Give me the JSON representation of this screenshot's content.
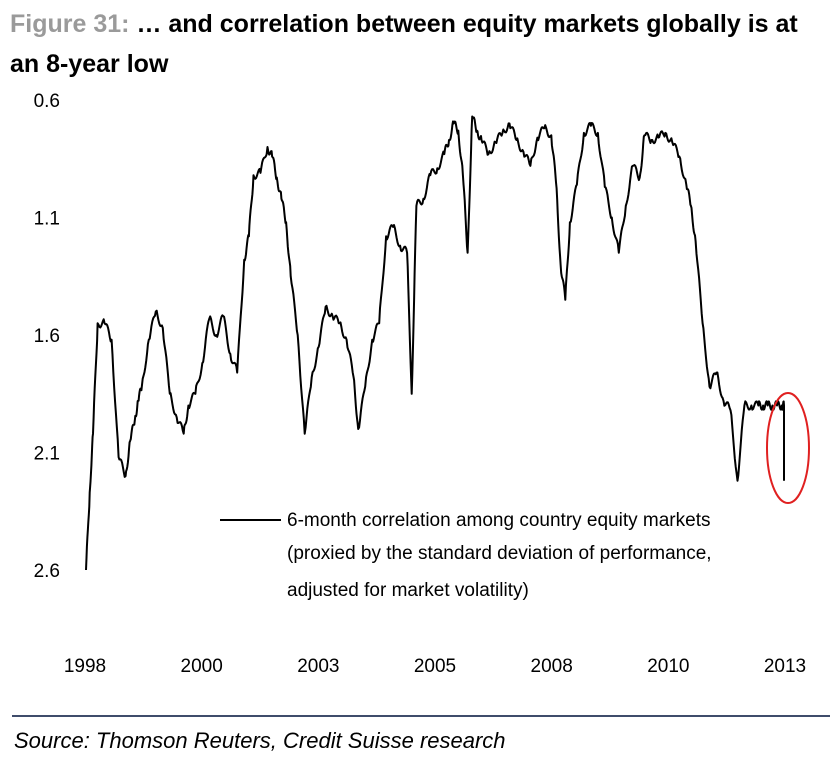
{
  "figure": {
    "label": "Figure 31:",
    "title": "… and correlation between equity markets globally is at an 8-year low",
    "source": "Source: Thomson Reuters, Credit Suisse research"
  },
  "chart_data": {
    "type": "line",
    "title": "Figure 31: … and correlation between equity markets globally is at an 8-year low",
    "y_axis": {
      "ticks": [
        "0.6",
        "1.1",
        "1.6",
        "2.1",
        "2.6"
      ],
      "range": [
        0.6,
        2.6
      ],
      "inverted": true
    },
    "x_axis": {
      "ticks": [
        "1998",
        "2000",
        "2003",
        "2005",
        "2008",
        "2010",
        "2013"
      ],
      "range": [
        1998.0,
        2013.0
      ]
    },
    "legend_lines": [
      "6-month correlation among country equity markets",
      "(proxied by the standard deviation of performance,",
      "adjusted for market volatility)"
    ],
    "legend_position": "bottom-center",
    "highlight": {
      "shape": "ellipse",
      "color": "#e02020",
      "around": "latest values (2013)"
    },
    "series": [
      {
        "name": "6-month correlation among country equity markets (proxied by the standard deviation of performance, adjusted for market volatility)",
        "color": "#000000",
        "x": [
          1998.0,
          1998.08,
          1998.15,
          1998.25,
          1998.4,
          1998.55,
          1998.7,
          1998.85,
          1998.95,
          1999.05,
          1999.12,
          1999.2,
          1999.35,
          1999.5,
          1999.65,
          1999.8,
          1999.95,
          2000.1,
          2000.2,
          2000.35,
          2000.5,
          2000.65,
          2000.8,
          2000.95,
          2001.1,
          2001.25,
          2001.4,
          2001.5,
          2001.6,
          2001.75,
          2001.9,
          2002.0,
          2002.1,
          2002.2,
          2002.3,
          2002.4,
          2002.55,
          2002.7,
          2002.85,
          2003.0,
          2003.15,
          2003.3,
          2003.45,
          2003.6,
          2003.75,
          2003.85,
          2004.0,
          2004.15,
          2004.3,
          2004.45,
          2004.6,
          2004.75,
          2004.9,
          2005.0,
          2005.1,
          2005.25,
          2005.4,
          2005.55,
          2005.7,
          2005.8,
          2005.9,
          2006.0,
          2006.1,
          2006.2,
          2006.3,
          2006.4,
          2006.5,
          2006.65,
          2006.8,
          2006.95,
          2007.1,
          2007.25,
          2007.4,
          2007.55,
          2007.7,
          2007.85,
          2008.0,
          2008.1,
          2008.2,
          2008.3,
          2008.4,
          2008.55,
          2008.7,
          2008.85,
          2009.0,
          2009.15,
          2009.3,
          2009.45,
          2009.6,
          2009.75,
          2009.9,
          2010.0,
          2010.15,
          2010.3,
          2010.45,
          2010.6,
          2010.75,
          2010.9,
          2011.0,
          2011.1,
          2011.25,
          2011.4,
          2011.55,
          2011.7,
          2011.85,
          2012.0,
          2012.15,
          2012.3,
          2012.45,
          2012.55,
          2012.65,
          2012.75,
          2012.85,
          2012.95,
          2013.0
        ],
        "y": [
          2.6,
          2.27,
          2.02,
          1.55,
          1.55,
          1.62,
          2.12,
          2.2,
          2.05,
          1.96,
          1.88,
          1.82,
          1.62,
          1.5,
          1.57,
          1.85,
          1.95,
          2.02,
          1.9,
          1.85,
          1.72,
          1.53,
          1.6,
          1.52,
          1.68,
          1.76,
          1.28,
          1.18,
          0.92,
          0.91,
          0.8,
          0.84,
          0.93,
          1.02,
          1.12,
          1.35,
          1.6,
          2.02,
          1.78,
          1.65,
          1.48,
          1.52,
          1.55,
          1.62,
          1.78,
          2.0,
          1.82,
          1.62,
          1.55,
          1.18,
          1.14,
          1.22,
          1.25,
          1.85,
          1.05,
          1.02,
          0.92,
          0.89,
          0.83,
          0.77,
          0.7,
          0.73,
          0.92,
          1.25,
          0.67,
          0.73,
          0.77,
          0.83,
          0.78,
          0.74,
          0.7,
          0.77,
          0.82,
          0.88,
          0.76,
          0.72,
          0.75,
          0.95,
          1.3,
          1.45,
          1.12,
          0.96,
          0.74,
          0.71,
          0.74,
          0.97,
          1.1,
          1.25,
          1.05,
          0.88,
          0.93,
          0.75,
          0.77,
          0.76,
          0.74,
          0.78,
          0.84,
          0.96,
          1.05,
          1.2,
          1.55,
          1.82,
          1.76,
          1.88,
          1.92,
          2.22,
          1.9,
          1.9,
          1.9,
          1.9,
          1.9,
          1.9,
          1.9,
          1.9,
          1.9
        ]
      }
    ]
  }
}
